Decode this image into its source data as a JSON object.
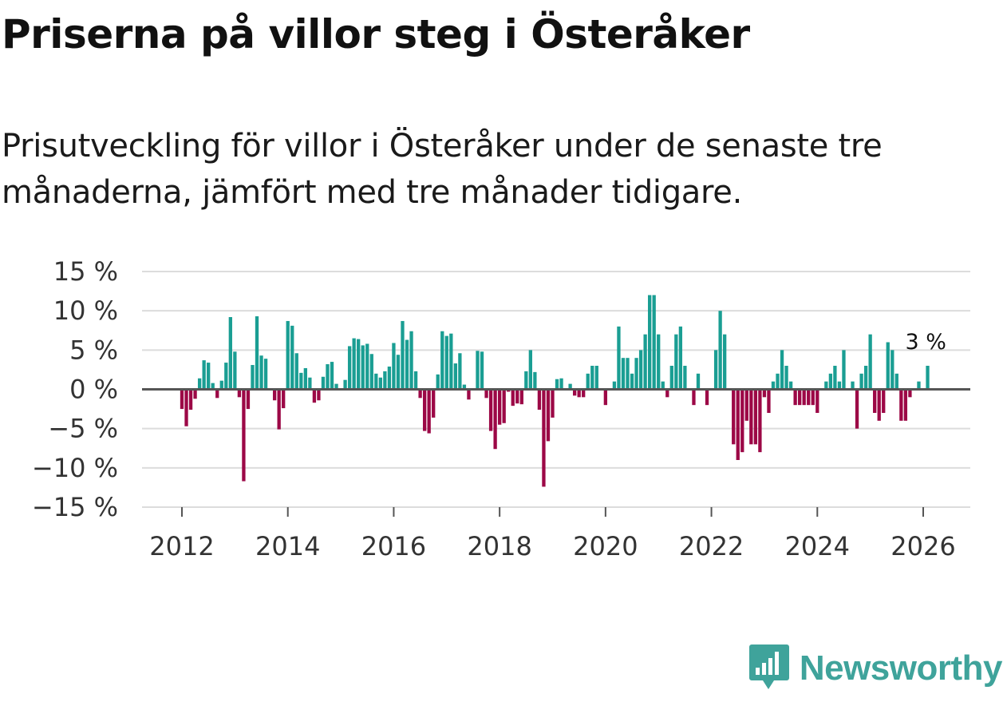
{
  "title": "Priserna på villor steg i Österåker",
  "subtitle": "Prisutveckling för villor i Österåker under de senaste tre månaderna, jämfört med tre månader tidigare.",
  "brand": {
    "name": "Newsworthy",
    "icon": "bar-chart-speech-bubble-icon"
  },
  "colors": {
    "positive": "#1a9e93",
    "negative": "#9c0846",
    "grid": "#dcdcdc",
    "zero_line": "#555555",
    "brand": "#3fa39b"
  },
  "chart_data": {
    "type": "bar",
    "title": "Priserna på villor steg i Österåker",
    "xlabel": "",
    "ylabel": "",
    "ylim": [
      -15,
      15
    ],
    "y_ticks": [
      15,
      10,
      5,
      0,
      -5,
      -10,
      -15
    ],
    "y_tick_labels": [
      "15 %",
      "10 %",
      "5 %",
      "0 %",
      "−5 %",
      "−10 %",
      "−15 %"
    ],
    "x_ticks": [
      2012,
      2014,
      2016,
      2018,
      2020,
      2022,
      2024,
      2026
    ],
    "x_tick_labels": [
      "2012",
      "2014",
      "2016",
      "2018",
      "2020",
      "2022",
      "2024",
      "2026"
    ],
    "start": "2011-01",
    "frequency": "monthly",
    "last_label": "3 %",
    "values": [
      null,
      null,
      null,
      null,
      null,
      null,
      null,
      null,
      null,
      null,
      null,
      null,
      -2.5,
      -4.7,
      -2.6,
      -1.2,
      1.4,
      3.7,
      3.4,
      0.8,
      -1.1,
      1.1,
      3.4,
      9.2,
      4.8,
      -1.0,
      -11.7,
      -2.5,
      3.1,
      9.3,
      4.3,
      3.9,
      0.0,
      -1.4,
      -5.1,
      -2.4,
      8.7,
      8.1,
      4.6,
      2.1,
      2.7,
      1.5,
      -1.7,
      -1.4,
      1.6,
      3.2,
      3.5,
      0.7,
      0.0,
      1.2,
      5.5,
      6.5,
      6.4,
      5.6,
      5.8,
      4.5,
      2.0,
      1.5,
      2.3,
      2.9,
      5.9,
      4.4,
      8.7,
      6.3,
      7.4,
      2.3,
      -1.1,
      -5.3,
      -5.6,
      -3.6,
      1.9,
      7.4,
      6.8,
      7.1,
      3.3,
      4.6,
      0.6,
      -1.3,
      0.0,
      4.9,
      4.8,
      -1.1,
      -5.3,
      -7.6,
      -4.5,
      -4.3,
      -0.3,
      -2.1,
      -1.8,
      -1.9,
      2.3,
      5.0,
      2.2,
      -2.6,
      -12.4,
      -6.6,
      -3.6,
      1.3,
      1.4,
      0.0,
      0.7,
      -0.8,
      -1.0,
      -1.0,
      2.0,
      3.0,
      3.0,
      0.0,
      -2.0,
      0.0,
      1.0,
      8.0,
      4.0,
      4.0,
      2.0,
      4.0,
      5.0,
      7.0,
      12.0,
      12.0,
      7.0,
      1.0,
      -1.0,
      3.0,
      7.0,
      8.0,
      3.0,
      0.0,
      -2.0,
      2.0,
      0.0,
      -2.0,
      0.0,
      5.0,
      10.0,
      7.0,
      0.0,
      -7.0,
      -9.0,
      -8.0,
      -4.0,
      -7.0,
      -7.0,
      -8.0,
      -1.0,
      -3.0,
      1.0,
      2.0,
      5.0,
      3.0,
      1.0,
      -2.0,
      -2.0,
      -2.0,
      -2.0,
      -2.0,
      -3.0,
      0.0,
      1.0,
      2.0,
      3.0,
      1.0,
      5.0,
      0.0,
      1.0,
      -5.0,
      2.0,
      3.0,
      7.0,
      -3.0,
      -4.0,
      -3.0,
      6.0,
      5.0,
      2.0,
      -4.0,
      -4.0,
      -1.0,
      0.0,
      1.0,
      0.0,
      3.0
    ]
  }
}
